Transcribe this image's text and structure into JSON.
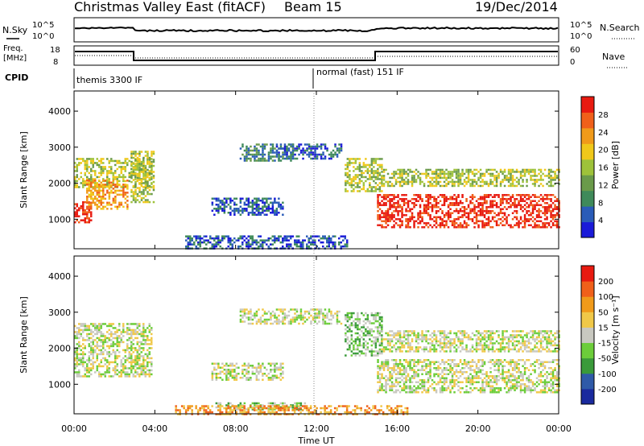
{
  "header": {
    "title": "Christmas Valley East (fitACF)",
    "beam": "Beam 15",
    "date": "19/Dec/2014"
  },
  "params_panel": {
    "nsky_label": "N.Sky",
    "nsearch_label": "N.Search",
    "noise_ticks": [
      "10^5",
      "10^0"
    ],
    "freq_label_1": "Freq.",
    "freq_label_2": "[MHz]",
    "freq_ticks": [
      "18",
      "8"
    ],
    "nave_label": "Nave",
    "nave_ticks": [
      "60",
      "0"
    ],
    "cpid_label": "CPID",
    "cpid_1": "themis 3300 IF",
    "cpid_2": "normal (fast) 151 IF"
  },
  "colors": {
    "power": [
      "#1a1ad8",
      "#2a5cb8",
      "#3f8a5a",
      "#6a9a4a",
      "#9ec23a",
      "#f0c81a",
      "#f09a1a",
      "#f0601a",
      "#e81a10"
    ],
    "velocity": [
      "#1a2a9e",
      "#2f5aa8",
      "#3a9a3a",
      "#6ccd3a",
      "#c8c8c0",
      "#f0c848",
      "#f09a1a",
      "#f0601a",
      "#e81a10"
    ]
  },
  "chart_data": [
    {
      "type": "heatmap",
      "title": "Power",
      "ylabel": "Slant Range [km]",
      "ylim": [
        180,
        4560
      ],
      "yticks": [
        1000,
        2000,
        3000,
        4000
      ],
      "colorbar_label": "Power [dB]",
      "colorbar_ticks": [
        "28",
        "24",
        "20",
        "16",
        "12",
        "8",
        "4"
      ],
      "xlim": [
        0,
        24
      ],
      "regions": [
        {
          "t0": 0.0,
          "t1": 0.8,
          "r0": 900,
          "r1": 1500,
          "v": 8
        },
        {
          "t0": 0.0,
          "t1": 3.8,
          "r0": 1900,
          "r1": 2700,
          "v": 4
        },
        {
          "t0": 0.6,
          "t1": 2.6,
          "r0": 1300,
          "r1": 2100,
          "v": 6
        },
        {
          "t0": 2.8,
          "t1": 3.9,
          "r0": 1500,
          "r1": 2900,
          "v": 4
        },
        {
          "t0": 6.8,
          "t1": 10.3,
          "r0": 1100,
          "r1": 1600,
          "v": 1
        },
        {
          "t0": 8.2,
          "t1": 10.8,
          "r0": 2600,
          "r1": 3100,
          "v": 2
        },
        {
          "t0": 10.0,
          "t1": 13.2,
          "r0": 2700,
          "r1": 3100,
          "v": 1
        },
        {
          "t0": 13.4,
          "t1": 15.2,
          "r0": 1800,
          "r1": 2700,
          "v": 4
        },
        {
          "t0": 15.2,
          "t1": 24.0,
          "r0": 1900,
          "r1": 2400,
          "v": 4
        },
        {
          "t0": 15.0,
          "t1": 24.0,
          "r0": 800,
          "r1": 1700,
          "v": 8
        },
        {
          "t0": 5.5,
          "t1": 13.5,
          "r0": 200,
          "r1": 550,
          "v": 1
        }
      ]
    },
    {
      "type": "heatmap",
      "title": "Velocity",
      "ylabel": "Slant Range [km]",
      "xlabel": "Time UT",
      "ylim": [
        180,
        4560
      ],
      "yticks": [
        1000,
        2000,
        3000,
        4000
      ],
      "xticks": [
        "00:00",
        "04:00",
        "08:00",
        "12:00",
        "16:00",
        "20:00",
        "00:00"
      ],
      "colorbar_label": "Velocity [m s⁻¹]",
      "colorbar_ticks": [
        "200",
        "100",
        "50",
        "15",
        "-15",
        "-50",
        "-100",
        "-200"
      ],
      "xlim": [
        0,
        24
      ],
      "regions": [
        {
          "t0": 0.0,
          "t1": 3.8,
          "r0": 1200,
          "r1": 2700,
          "v": 4
        },
        {
          "t0": 8.2,
          "t1": 13.2,
          "r0": 2700,
          "r1": 3100,
          "v": 4
        },
        {
          "t0": 6.8,
          "t1": 10.3,
          "r0": 1100,
          "r1": 1600,
          "v": 4
        },
        {
          "t0": 13.4,
          "t1": 15.2,
          "r0": 1800,
          "r1": 3000,
          "v": 3
        },
        {
          "t0": 15.0,
          "t1": 24.0,
          "r0": 800,
          "r1": 1700,
          "v": 4
        },
        {
          "t0": 15.2,
          "t1": 24.0,
          "r0": 1900,
          "r1": 2500,
          "v": 4
        },
        {
          "t0": 7.0,
          "t1": 11.5,
          "r0": 300,
          "r1": 500,
          "v": 3
        },
        {
          "t0": 5.0,
          "t1": 16.5,
          "r0": 180,
          "r1": 420,
          "v": 6
        }
      ]
    }
  ]
}
